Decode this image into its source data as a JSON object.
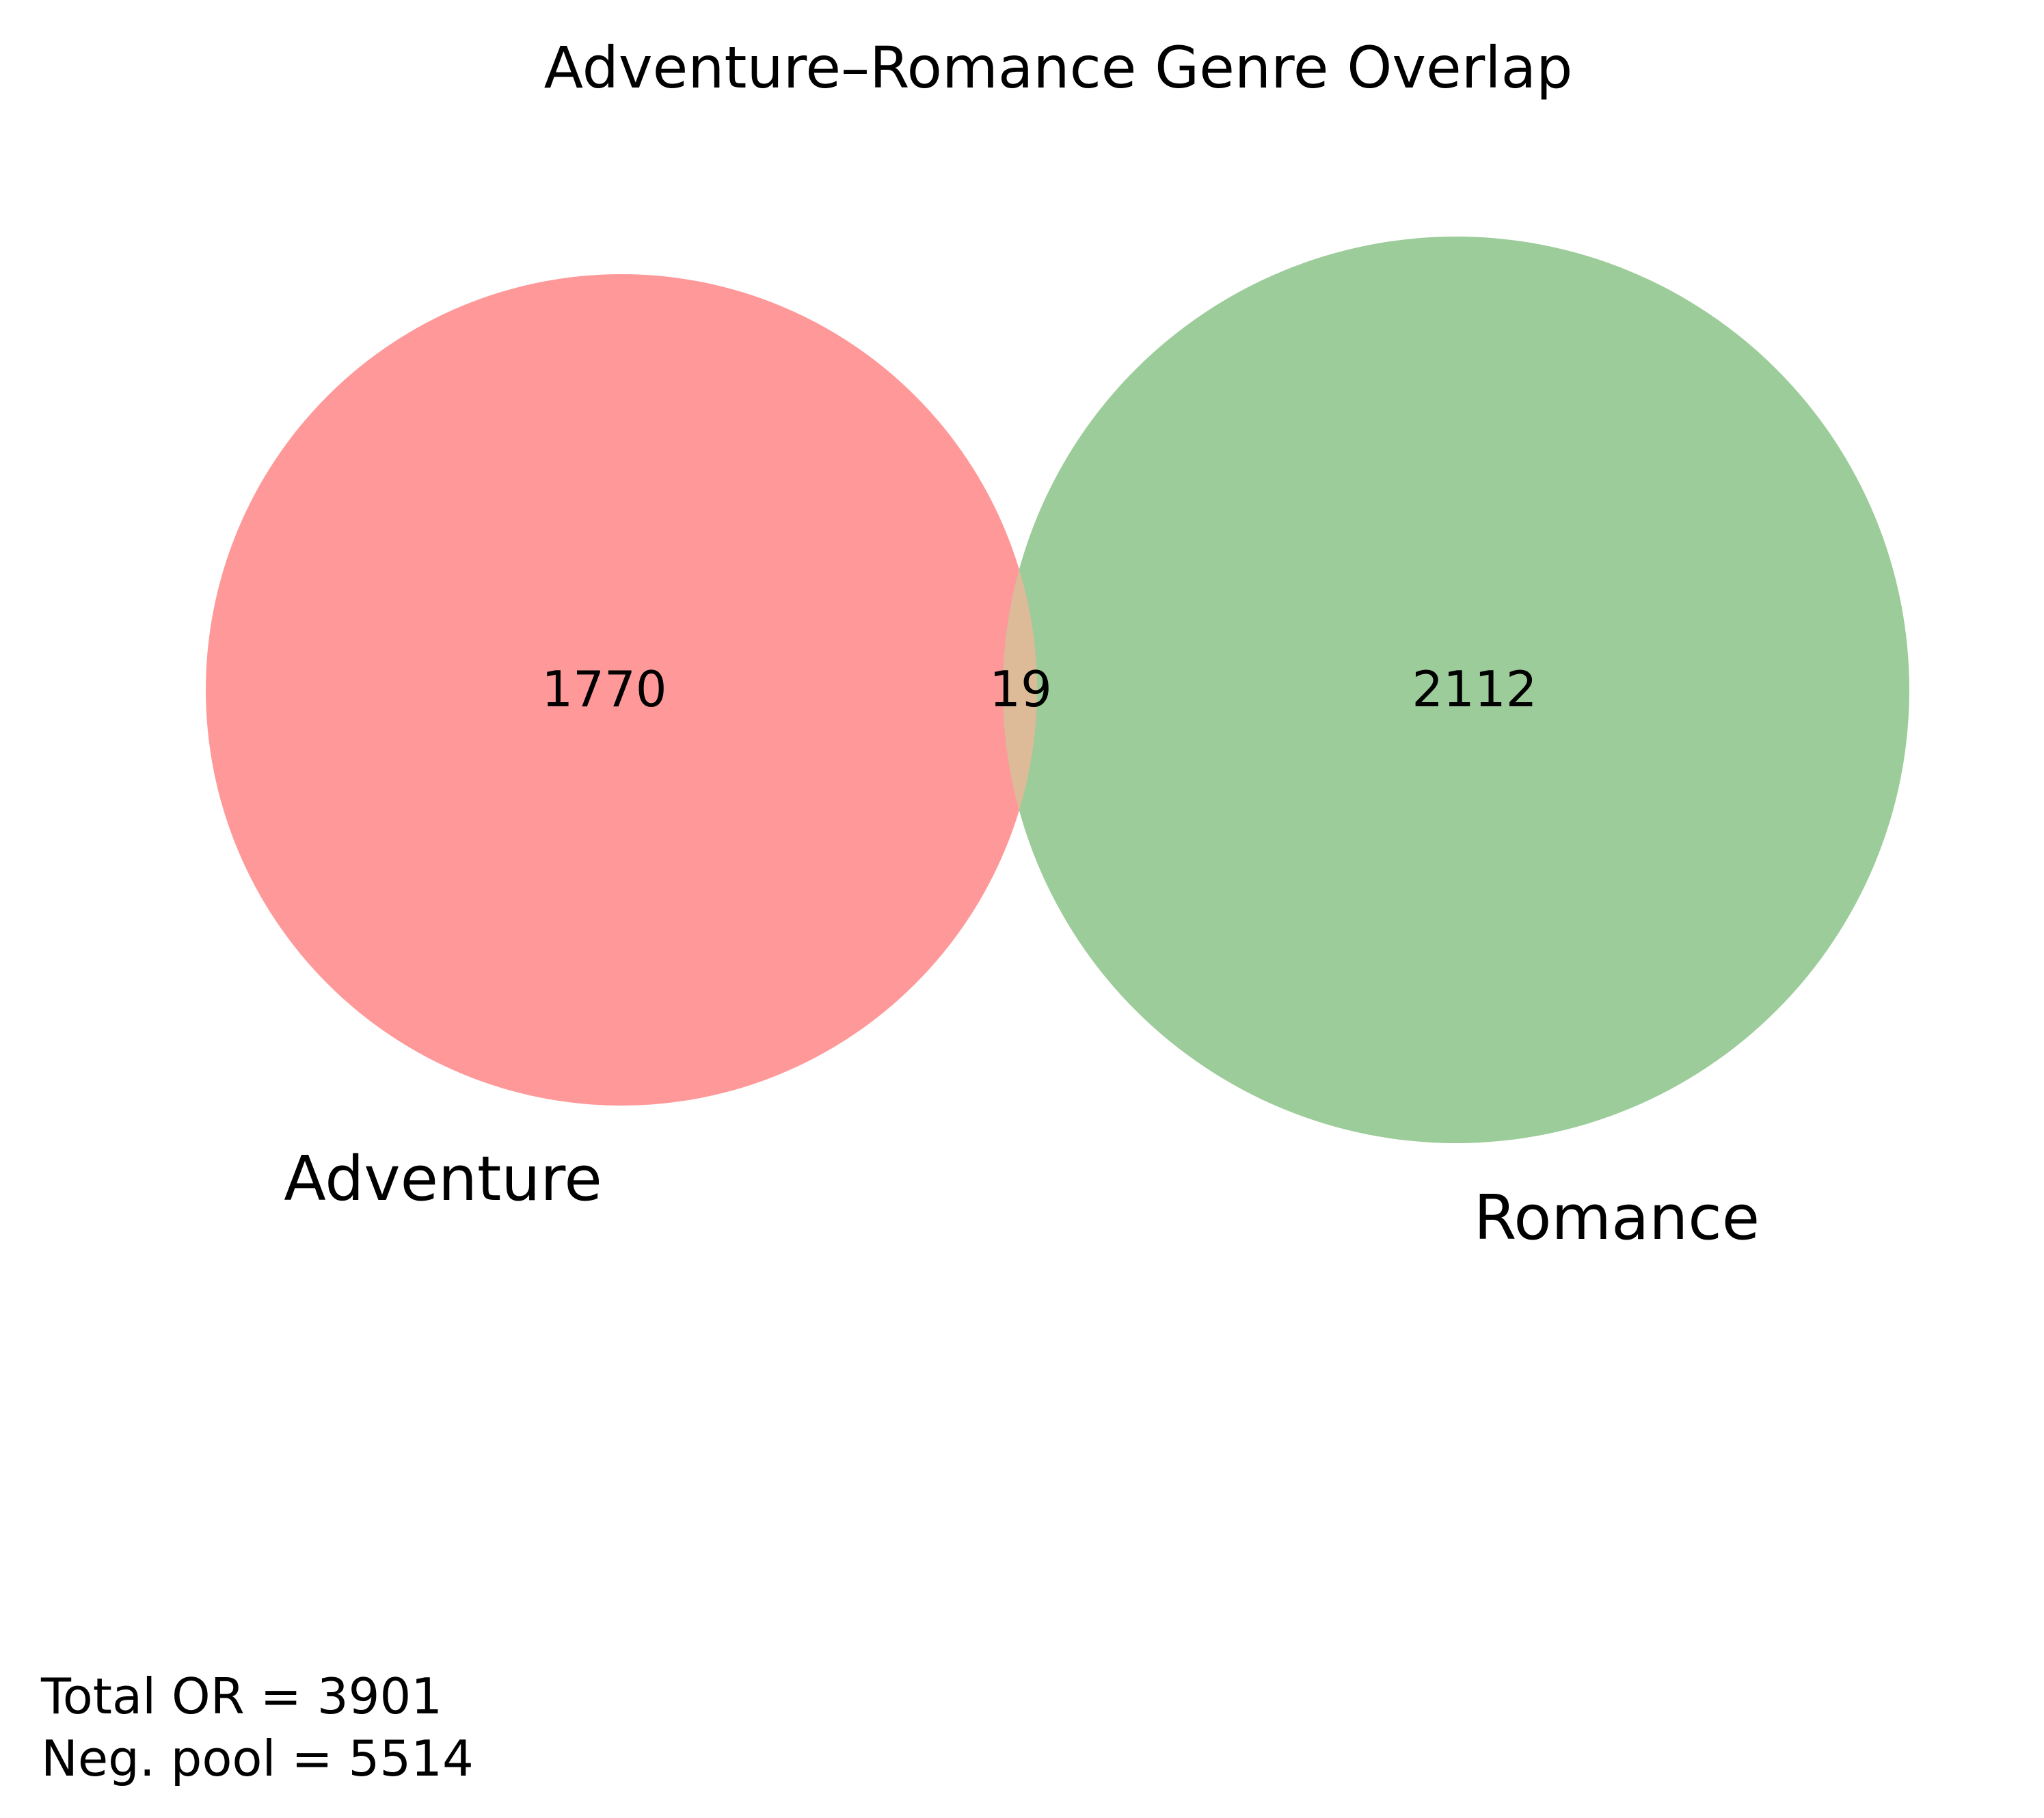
{
  "title": "Adventure–Romance Genre Overlap",
  "sets": [
    {
      "name": "Adventure",
      "only_count": "1770",
      "color": "#ff9999"
    },
    {
      "name": "Romance",
      "only_count": "2112",
      "color": "#9ccc99"
    }
  ],
  "intersection": {
    "count": "19",
    "color": "#ddbb99"
  },
  "stats": {
    "total_line": "Total OR = 3901",
    "neg_pool_line": "Neg. pool = 5514"
  }
}
